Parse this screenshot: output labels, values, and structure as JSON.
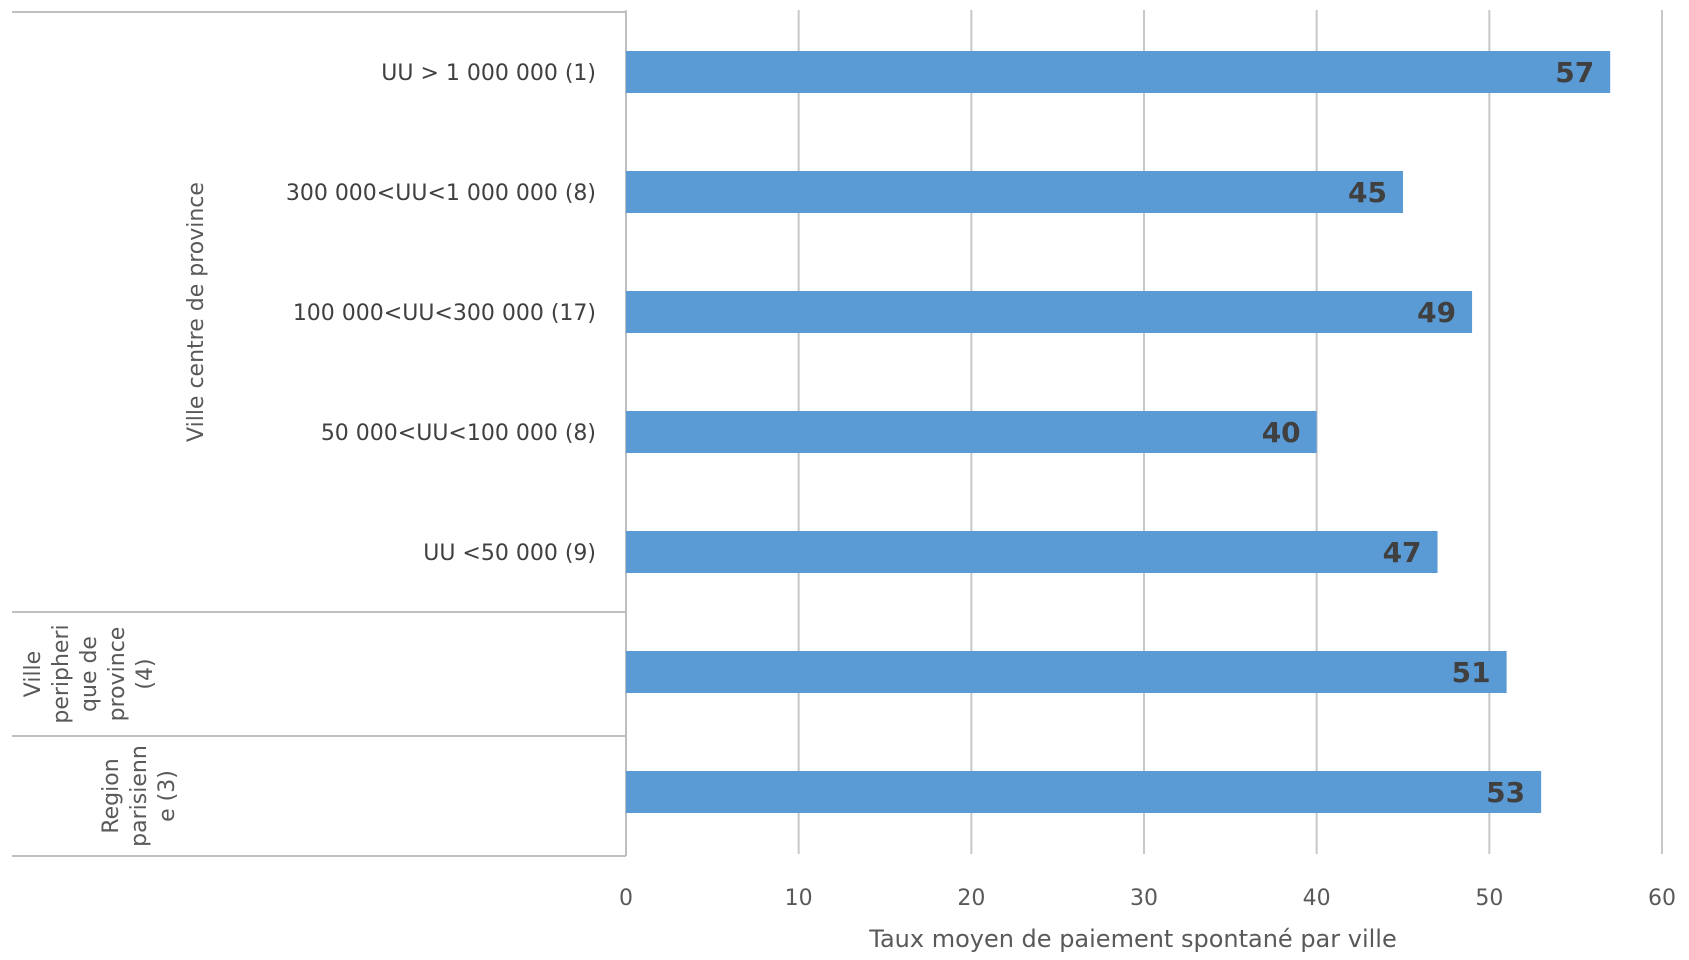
{
  "chart_data": {
    "type": "bar",
    "orientation": "horizontal",
    "categories": [
      "UU > 1 000 000 (1)",
      "300 000<UU<1 000 000 (8)",
      "100 000<UU<300 000 (17)",
      "50 000<UU<100 000 (8)",
      "UU <50 000 (9)",
      "",
      ""
    ],
    "groups": [
      {
        "label_lines": [
          "Ville centre de province"
        ]
      },
      {
        "label_lines": [
          "Ville",
          "peripheri",
          "que de",
          "province",
          "(4)"
        ]
      },
      {
        "label_lines": [
          "Region",
          "parisienn",
          "e (3)"
        ]
      }
    ],
    "values": [
      57,
      45,
      49,
      40,
      47,
      51,
      53
    ],
    "value_labels": [
      "57",
      "45",
      "49",
      "40",
      "47",
      "51",
      "53"
    ],
    "values_exact": [
      57.2,
      45.2,
      48.8,
      39.9,
      47.2,
      50.8,
      53.5
    ],
    "xlabel": "Taux moyen de paiement spontané par ville",
    "ylabel": "",
    "xlim": [
      0,
      60
    ],
    "x_ticks": [
      "0",
      "10",
      "20",
      "30",
      "40",
      "50",
      "60"
    ],
    "grid": true,
    "colors": {
      "bar": "#5b9bd5",
      "grid": "#c8c8c8",
      "frame": "#bfbfbf"
    }
  }
}
